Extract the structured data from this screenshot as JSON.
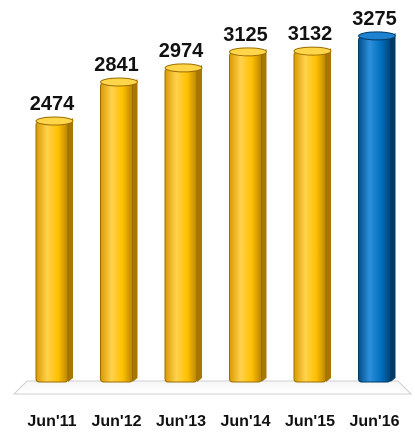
{
  "chart_data": {
    "type": "bar",
    "title": "",
    "xlabel": "",
    "ylabel": "",
    "categories": [
      "Jun'11",
      "Jun'12",
      "Jun'13",
      "Jun'14",
      "Jun'15",
      "Jun'16"
    ],
    "values": [
      2474,
      2841,
      2974,
      3125,
      3132,
      3275
    ],
    "value_labels": [
      "2474",
      "2841",
      "2974",
      "3125",
      "3132",
      "3275"
    ],
    "ylim": [
      0,
      3500
    ],
    "grid": false,
    "legend": "none",
    "bar_colors": [
      "#FFC000",
      "#FFC000",
      "#FFC000",
      "#FFC000",
      "#FFC000",
      "#0070C0"
    ],
    "colors": {
      "default_bar": "#FFC000",
      "highlight_bar": "#0070C0",
      "floor": "#ffffff",
      "text": "#111111"
    }
  }
}
